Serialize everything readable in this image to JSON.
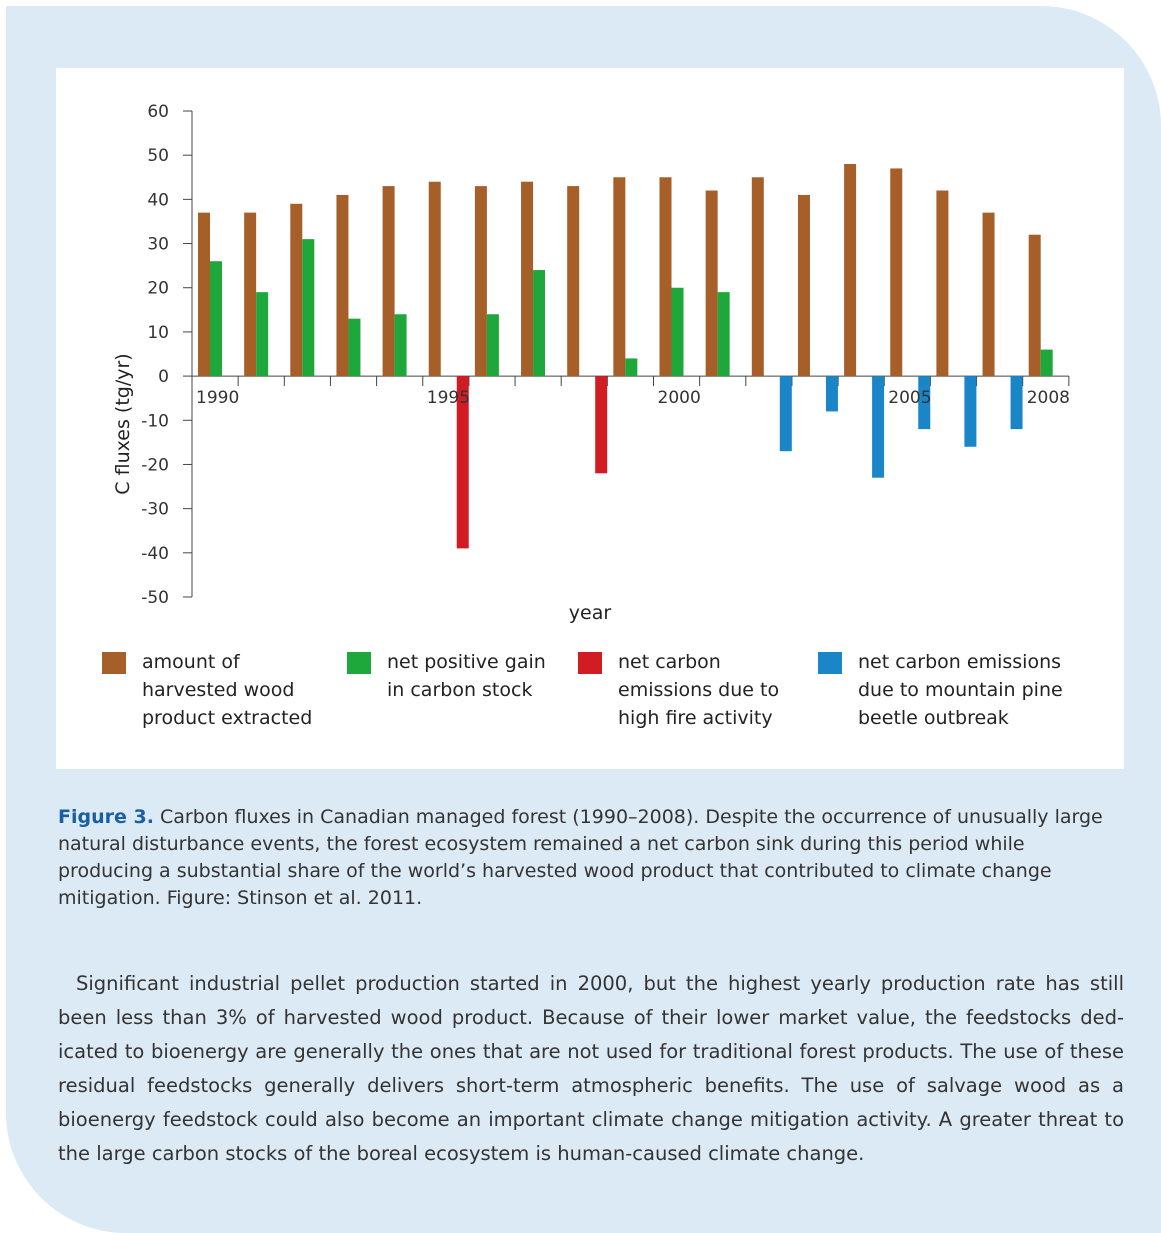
{
  "chart_data": {
    "type": "bar",
    "ylabel": "C fluxes (tg/yr)",
    "xlabel": "year",
    "ylim": [
      -50,
      60
    ],
    "y_ticks": [
      60,
      50,
      40,
      30,
      20,
      10,
      0,
      -10,
      -20,
      -30,
      -40,
      -50
    ],
    "x_tick_labels": [
      {
        "year": 1990,
        "label": "1990"
      },
      {
        "year": 1995,
        "label": "1995"
      },
      {
        "year": 2000,
        "label": "2000"
      },
      {
        "year": 2005,
        "label": "2005"
      },
      {
        "year": 2008,
        "label": "2008"
      }
    ],
    "years": [
      1990,
      1991,
      1992,
      1993,
      1994,
      1995,
      1996,
      1997,
      1998,
      1999,
      2000,
      2001,
      2002,
      2003,
      2004,
      2005,
      2006,
      2007,
      2008
    ],
    "series": [
      {
        "name": "amount of harvested wood product extracted",
        "color": "#a65f28",
        "values": [
          37,
          37,
          39,
          41,
          43,
          44,
          43,
          44,
          43,
          45,
          45,
          42,
          45,
          41,
          48,
          47,
          42,
          37,
          32
        ]
      },
      {
        "name": "net positive gain in carbon stock",
        "color": "#1ea83c",
        "values": [
          26,
          19,
          31,
          13,
          14,
          null,
          14,
          24,
          null,
          4,
          20,
          19,
          null,
          null,
          null,
          null,
          null,
          null,
          6
        ]
      },
      {
        "name": "net carbon emissions due to high fire activity",
        "color": "#d11c24",
        "values": [
          null,
          null,
          null,
          null,
          null,
          -39,
          null,
          null,
          -22,
          null,
          null,
          null,
          null,
          null,
          null,
          null,
          null,
          null,
          null
        ]
      },
      {
        "name": "net carbon emissions due to mountain pine beetle outbreak",
        "color": "#1a86c8",
        "values": [
          null,
          null,
          null,
          null,
          null,
          null,
          null,
          null,
          null,
          null,
          null,
          null,
          -17,
          -8,
          -23,
          -12,
          -16,
          -12,
          null
        ]
      }
    ],
    "legend": [
      {
        "label_lines": [
          "amount of",
          "harvested wood",
          "product extracted"
        ],
        "color": "#a65f28"
      },
      {
        "label_lines": [
          "net positive gain",
          "in carbon stock"
        ],
        "color": "#1ea83c"
      },
      {
        "label_lines": [
          "net carbon",
          "emissions due to",
          "high fire activity"
        ],
        "color": "#d11c24"
      },
      {
        "label_lines": [
          "net carbon emissions",
          "due to mountain pine",
          "beetle outbreak"
        ],
        "color": "#1a86c8"
      }
    ],
    "legend_position": "bottom",
    "grid": false
  },
  "caption": {
    "figure_label": "Figure 3.",
    "text": "Carbon fluxes in Canadian managed forest (1990–2008). Despite the occurrence of unusually large natural disturbance events, the forest ecosystem remained a net carbon sink during this period while producing a substantial share of the world’s harvested wood product that contributed to climate change mitigation. Figure: Stinson et al. 2011."
  },
  "body_text": "Significant industrial pellet production started in 2000, but the highest yearly production rate has still been less than 3% of harvested wood product. Because of their lower market value, the feedstocks ded­icated to bioenergy are generally the ones that are not used for traditional forest products. The use of these residual feedstocks generally delivers short-term atmospheric benefits. The use of salvage wood as a bioenergy feedstock could also become an important climate change mitigation activity. A greater threat to the large carbon stocks of the boreal ecosystem is human-caused climate change.",
  "colors": {
    "panel_background": "#dceaf6",
    "figure_label": "#1a5fa0"
  }
}
